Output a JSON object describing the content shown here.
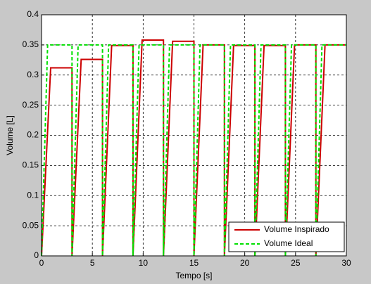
{
  "chart_data": {
    "type": "line",
    "xlabel": "Tempo [s]",
    "ylabel": "Volume [L]",
    "x": [
      0,
      0.6,
      0.9,
      3,
      3,
      3.6,
      3.9,
      6,
      6,
      6.6,
      6.9,
      9,
      9,
      9.6,
      9.9,
      12,
      12,
      12.6,
      12.9,
      15,
      15,
      15.6,
      15.9,
      18,
      18,
      18.6,
      18.9,
      21,
      21,
      21.6,
      21.9,
      24,
      24,
      24.6,
      24.9,
      27,
      27,
      27.6,
      27.9,
      30
    ],
    "series": [
      {
        "name": "Volume Inspirado",
        "color": "#cc0000",
        "dash": false,
        "values": [
          0,
          0.208,
          0.312,
          0.312,
          0,
          0.217,
          0.326,
          0.326,
          0,
          0.233,
          0.349,
          0.349,
          0,
          0.239,
          0.358,
          0.358,
          0,
          0.237,
          0.356,
          0.356,
          0,
          0.233,
          0.35,
          0.35,
          0,
          0.233,
          0.349,
          0.349,
          0,
          0.233,
          0.349,
          0.349,
          0,
          0.233,
          0.35,
          0.35,
          0,
          0.233,
          0.35,
          0.35
        ]
      },
      {
        "name": "Volume Ideal",
        "color": "#00e000",
        "dash": true,
        "values": [
          0,
          0.35,
          0.35,
          0.35,
          0,
          0.35,
          0.35,
          0.35,
          0,
          0.35,
          0.35,
          0.35,
          0,
          0.35,
          0.35,
          0.35,
          0,
          0.35,
          0.35,
          0.35,
          0,
          0.35,
          0.35,
          0.35,
          0,
          0.35,
          0.35,
          0.35,
          0,
          0.35,
          0.35,
          0.35,
          0,
          0.35,
          0.35,
          0.35,
          0,
          0.35,
          0.35,
          0.35
        ]
      }
    ],
    "xlim": [
      0,
      30
    ],
    "xticks": [
      0,
      5,
      10,
      15,
      20,
      25,
      30
    ],
    "ylim": [
      0,
      0.4
    ],
    "yticks": [
      0,
      0.05,
      0.1,
      0.15,
      0.2,
      0.25,
      0.3,
      0.35,
      0.4
    ],
    "grid": true,
    "legend": "lower-right"
  }
}
